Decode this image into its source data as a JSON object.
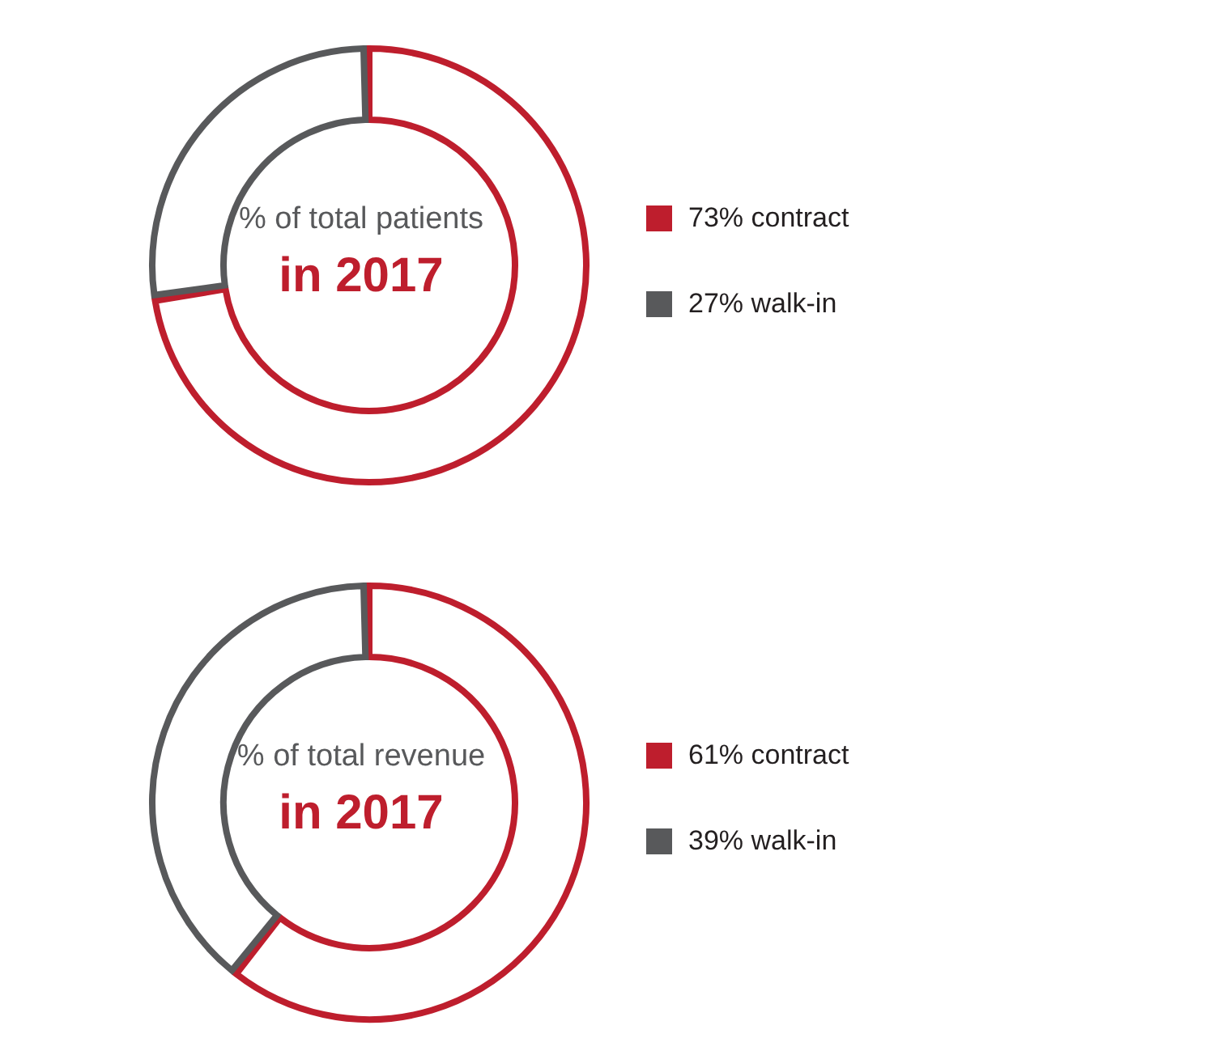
{
  "chart_data": [
    {
      "type": "donut",
      "title": "% of total patients",
      "subtitle": "in 2017",
      "categories": [
        "73% contract",
        "27% walk-in"
      ],
      "values": [
        73,
        27
      ],
      "colors": [
        "#be1e2d",
        "#58595b"
      ],
      "legend": "right"
    },
    {
      "type": "donut",
      "title": "% of total revenue",
      "subtitle": "in 2017",
      "categories": [
        "61% contract",
        "39% walk-in"
      ],
      "values": [
        61,
        39
      ],
      "colors": [
        "#be1e2d",
        "#58595b"
      ],
      "legend": "right"
    }
  ]
}
